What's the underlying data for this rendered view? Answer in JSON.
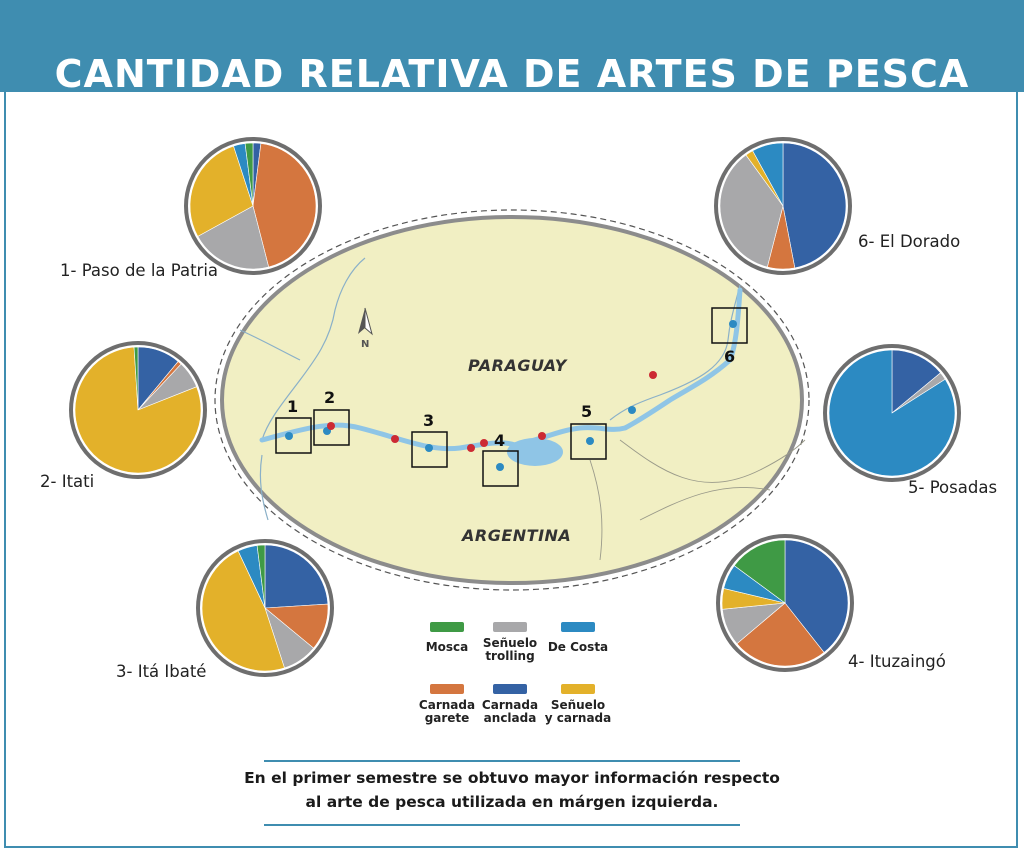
{
  "header": {
    "title": "CANTIDAD RELATIVA DE  ARTES DE PESCA"
  },
  "map": {
    "country_north": "PARAGUAY",
    "country_south": "ARGENTINA",
    "north_arrow_label": "N",
    "box_numbers": [
      "1",
      "2",
      "3",
      "4",
      "5",
      "6"
    ]
  },
  "legend": {
    "items": [
      {
        "key": "mosca",
        "lines": [
          "Mosca"
        ],
        "color": "#3f9a45"
      },
      {
        "key": "senuelo_trolling",
        "lines": [
          "Señuelo",
          "trolling"
        ],
        "color": "#a8a8aa"
      },
      {
        "key": "de_costa",
        "lines": [
          "De Costa"
        ],
        "color": "#2c8ac2"
      },
      {
        "key": "carnada_garete",
        "lines": [
          "Carnada",
          "garete"
        ],
        "color": "#d4763f"
      },
      {
        "key": "carnada_anclada",
        "lines": [
          "Carnada",
          "anclada"
        ],
        "color": "#3462a4"
      },
      {
        "key": "senuelo_carnada",
        "lines": [
          "Señuelo",
          "y carnada"
        ],
        "color": "#e3b12a"
      }
    ]
  },
  "chart_data": [
    {
      "type": "pie",
      "title": "1- Paso de la Patria",
      "slices": [
        {
          "category": "Carnada anclada",
          "value": 2,
          "color": "#3462a4"
        },
        {
          "category": "Carnada garete",
          "value": 44,
          "color": "#d4763f"
        },
        {
          "category": "Señuelo trolling",
          "value": 21,
          "color": "#a8a8aa"
        },
        {
          "category": "Señuelo y carnada",
          "value": 28,
          "color": "#e3b12a"
        },
        {
          "category": "De Costa",
          "value": 3,
          "color": "#2c8ac2"
        },
        {
          "category": "Mosca",
          "value": 2,
          "color": "#3f9a45"
        }
      ]
    },
    {
      "type": "pie",
      "title": "2- Itati",
      "slices": [
        {
          "category": "Carnada anclada",
          "value": 11,
          "color": "#3462a4"
        },
        {
          "category": "Carnada garete",
          "value": 1,
          "color": "#d4763f"
        },
        {
          "category": "Señuelo trolling",
          "value": 7,
          "color": "#a8a8aa"
        },
        {
          "category": "Señuelo y carnada",
          "value": 80,
          "color": "#e3b12a"
        },
        {
          "category": "Mosca",
          "value": 1,
          "color": "#3f9a45"
        }
      ]
    },
    {
      "type": "pie",
      "title": "3- Itá Ibaté",
      "slices": [
        {
          "category": "Carnada anclada",
          "value": 24,
          "color": "#3462a4"
        },
        {
          "category": "Carnada garete",
          "value": 12,
          "color": "#d4763f"
        },
        {
          "category": "Señuelo trolling",
          "value": 9,
          "color": "#a8a8aa"
        },
        {
          "category": "Señuelo y carnada",
          "value": 48,
          "color": "#e3b12a"
        },
        {
          "category": "De Costa",
          "value": 5,
          "color": "#2c8ac2"
        },
        {
          "category": "Mosca",
          "value": 2,
          "color": "#3f9a45"
        }
      ]
    },
    {
      "type": "pie",
      "title": "4- Ituzaingó",
      "slices": [
        {
          "category": "Carnada anclada",
          "value": 37,
          "color": "#3462a4"
        },
        {
          "category": "Carnada garete",
          "value": 23,
          "color": "#d4763f"
        },
        {
          "category": "Señuelo trolling",
          "value": 9,
          "color": "#a8a8aa"
        },
        {
          "category": "Señuelo y carnada",
          "value": 5,
          "color": "#e3b12a"
        },
        {
          "category": "De Costa",
          "value": 6,
          "color": "#2c8ac2"
        },
        {
          "category": "Mosca",
          "value": 14,
          "color": "#3f9a45"
        }
      ]
    },
    {
      "type": "pie",
      "title": "5- Posadas",
      "slices": [
        {
          "category": "Carnada anclada",
          "value": 14,
          "color": "#3462a4"
        },
        {
          "category": "Señuelo trolling",
          "value": 2,
          "color": "#a8a8aa"
        },
        {
          "category": "De Costa",
          "value": 84,
          "color": "#2c8ac2"
        }
      ]
    },
    {
      "type": "pie",
      "title": "6- El Dorado",
      "slices": [
        {
          "category": "Carnada anclada",
          "value": 47,
          "color": "#3462a4"
        },
        {
          "category": "Carnada garete",
          "value": 7,
          "color": "#d4763f"
        },
        {
          "category": "Señuelo trolling",
          "value": 36,
          "color": "#a8a8aa"
        },
        {
          "category": "Señuelo y carnada",
          "value": 2,
          "color": "#e3b12a"
        },
        {
          "category": "De Costa",
          "value": 8,
          "color": "#2c8ac2"
        }
      ]
    }
  ],
  "note": {
    "line1": "En el primer semestre se obtuvo mayor información respecto",
    "line2": "al arte de pesca utilizada en márgen izquierda."
  }
}
